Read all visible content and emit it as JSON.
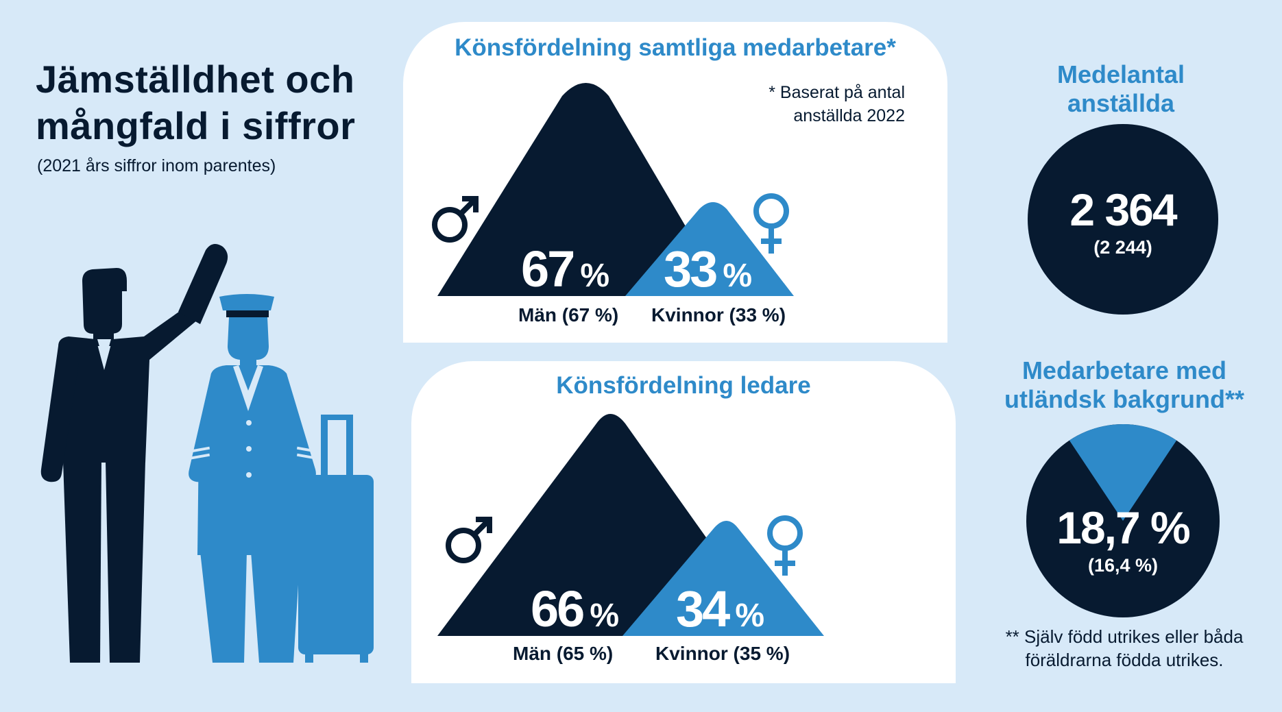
{
  "colors": {
    "background": "#d7e9f8",
    "navy": "#071a30",
    "blue": "#2e8ac9",
    "panel": "#ffffff"
  },
  "header": {
    "title": "Jämställdhet och mångfald i siffror",
    "subtitle": "(2021 års siffror inom parentes)"
  },
  "illustration": {
    "icon": "man-and-pilot-with-suitcase-illustration"
  },
  "gender_all": {
    "title": "Könsfördelning samtliga medarbetare*",
    "note_line1": "* Baserat på antal",
    "note_line2": "anställda 2022",
    "men_value": "67",
    "women_value": "33",
    "unit": "%",
    "men_caption": "Män (67 %)",
    "women_caption": "Kvinnor (33 %)",
    "men_icon": "male-symbol-icon",
    "women_icon": "female-symbol-icon"
  },
  "gender_leaders": {
    "title": "Könsfördelning ledare",
    "men_value": "66",
    "women_value": "34",
    "unit": "%",
    "men_caption": "Män (65 %)",
    "women_caption": "Kvinnor (35 %)",
    "men_icon": "male-symbol-icon",
    "women_icon": "female-symbol-icon"
  },
  "employees": {
    "title_line1": "Medelantal",
    "title_line2": "anställda",
    "value": "2 364",
    "previous": "(2 244)"
  },
  "foreign": {
    "title_line1": "Medarbetare med",
    "title_line2": "utländsk bakgrund**",
    "value": "18,7 %",
    "previous": "(16,4 %)",
    "share_pct": 18.7,
    "footnote_line1": "** Själv född utrikes eller båda",
    "footnote_line2": "föräldrarna födda utrikes."
  }
}
